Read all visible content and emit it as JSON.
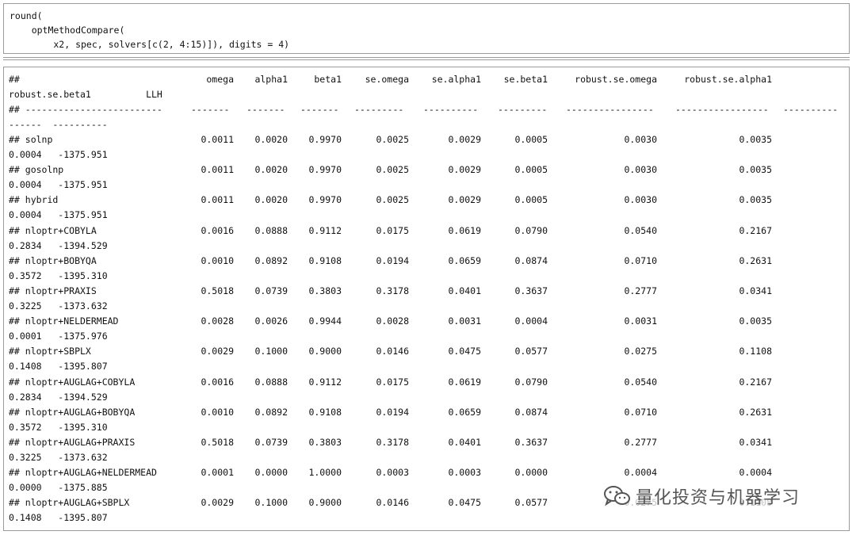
{
  "code": {
    "lines": [
      "round(",
      "    optMethodCompare(",
      "        x2, spec, solvers[c(2, 4:15)]), digits = 4)"
    ]
  },
  "header": {
    "hash": "##",
    "columns": [
      "omega",
      "alpha1",
      "beta1",
      "se.omega",
      "se.alpha1",
      "se.beta1",
      "robust.se.omega",
      "robust.se.alpha1"
    ],
    "wrap_line": "robust.se.beta1          LLH"
  },
  "dashes": {
    "line1": [
      "## -------------------------",
      "-------",
      "-------",
      "-------",
      "---------",
      "----------",
      "---------",
      "----------------",
      "-----------------",
      "----------"
    ],
    "line2": "------  ----------"
  },
  "rows": [
    {
      "label": "## solnp",
      "values": [
        "0.0011",
        "0.0020",
        "0.9970",
        "0.0025",
        "0.0029",
        "0.0005",
        "0.0030",
        "0.0035"
      ],
      "wrap": "0.0004   -1375.951"
    },
    {
      "label": "## gosolnp",
      "values": [
        "0.0011",
        "0.0020",
        "0.9970",
        "0.0025",
        "0.0029",
        "0.0005",
        "0.0030",
        "0.0035"
      ],
      "wrap": "0.0004   -1375.951"
    },
    {
      "label": "## hybrid",
      "values": [
        "0.0011",
        "0.0020",
        "0.9970",
        "0.0025",
        "0.0029",
        "0.0005",
        "0.0030",
        "0.0035"
      ],
      "wrap": "0.0004   -1375.951"
    },
    {
      "label": "## nloptr+COBYLA",
      "values": [
        "0.0016",
        "0.0888",
        "0.9112",
        "0.0175",
        "0.0619",
        "0.0790",
        "0.0540",
        "0.2167"
      ],
      "wrap": "0.2834   -1394.529"
    },
    {
      "label": "## nloptr+BOBYQA",
      "values": [
        "0.0010",
        "0.0892",
        "0.9108",
        "0.0194",
        "0.0659",
        "0.0874",
        "0.0710",
        "0.2631"
      ],
      "wrap": "0.3572   -1395.310"
    },
    {
      "label": "## nloptr+PRAXIS",
      "values": [
        "0.5018",
        "0.0739",
        "0.3803",
        "0.3178",
        "0.0401",
        "0.3637",
        "0.2777",
        "0.0341"
      ],
      "wrap": "0.3225   -1373.632"
    },
    {
      "label": "## nloptr+NELDERMEAD",
      "values": [
        "0.0028",
        "0.0026",
        "0.9944",
        "0.0028",
        "0.0031",
        "0.0004",
        "0.0031",
        "0.0035"
      ],
      "wrap": "0.0001   -1375.976"
    },
    {
      "label": "## nloptr+SBPLX",
      "values": [
        "0.0029",
        "0.1000",
        "0.9000",
        "0.0146",
        "0.0475",
        "0.0577",
        "0.0275",
        "0.1108"
      ],
      "wrap": "0.1408   -1395.807"
    },
    {
      "label": "## nloptr+AUGLAG+COBYLA",
      "values": [
        "0.0016",
        "0.0888",
        "0.9112",
        "0.0175",
        "0.0619",
        "0.0790",
        "0.0540",
        "0.2167"
      ],
      "wrap": "0.2834   -1394.529"
    },
    {
      "label": "## nloptr+AUGLAG+BOBYQA",
      "values": [
        "0.0010",
        "0.0892",
        "0.9108",
        "0.0194",
        "0.0659",
        "0.0874",
        "0.0710",
        "0.2631"
      ],
      "wrap": "0.3572   -1395.310"
    },
    {
      "label": "## nloptr+AUGLAG+PRAXIS",
      "values": [
        "0.5018",
        "0.0739",
        "0.3803",
        "0.3178",
        "0.0401",
        "0.3637",
        "0.2777",
        "0.0341"
      ],
      "wrap": "0.3225   -1373.632"
    },
    {
      "label": "## nloptr+AUGLAG+NELDERMEAD",
      "values": [
        "0.0001",
        "0.0000",
        "1.0000",
        "0.0003",
        "0.0003",
        "0.0000",
        "0.0004",
        "0.0004"
      ],
      "wrap": "0.0000   -1375.885"
    },
    {
      "label": "## nloptr+AUGLAG+SBPLX",
      "values": [
        "0.0029",
        "0.1000",
        "0.9000",
        "0.0146",
        "0.0475",
        "0.0577",
        "0.0275",
        "0.1108"
      ],
      "wrap": "0.1408   -1395.807"
    }
  ],
  "watermark": {
    "text": "量化投资与机器学习",
    "icon": "wechat-icon"
  }
}
